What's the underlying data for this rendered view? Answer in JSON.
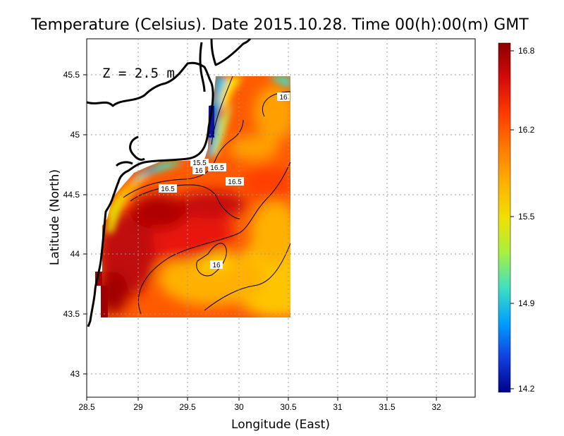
{
  "title": "Temperature (Celsius). Date 2015.10.28. Time 00(h):00(m) GMT",
  "depth_label": "Z = 2.5 m",
  "xlabel": "Longitude (East)",
  "ylabel": "Latitude (North)",
  "x_ticks": [
    "28.5",
    "29",
    "29.5",
    "30",
    "30.5",
    "31",
    "31.5",
    "32"
  ],
  "y_ticks": [
    "43",
    "43.5",
    "44",
    "44.5",
    "45",
    "45.5"
  ],
  "colorbar": {
    "min": 14.2,
    "max": 16.8,
    "ticks": [
      "16.8",
      "16.2",
      "15.5",
      "14.9",
      "14.2"
    ],
    "colors": [
      "#8b0000",
      "#d40a0a",
      "#ff3a00",
      "#ff7a00",
      "#ffb000",
      "#f0e000",
      "#a8f040",
      "#40e0c0",
      "#00a0ff",
      "#1040e0",
      "#00008b"
    ]
  },
  "contour_labels": [
    "16",
    "15.5",
    "16",
    "16.5",
    "16.5",
    "16.5",
    "16"
  ],
  "chart_data": {
    "type": "heatmap",
    "title": "Temperature (Celsius). Date 2015.10.28. Time 00(h):00(m) GMT",
    "xlabel": "Longitude (East)",
    "ylabel": "Latitude (North)",
    "xlim": [
      28.5,
      32.4
    ],
    "ylim": [
      42.8,
      45.8
    ],
    "data_extent": {
      "lon": [
        28.65,
        30.55
      ],
      "lat": [
        43.5,
        45.5
      ]
    },
    "colorscale_range": [
      14.2,
      16.8
    ],
    "grid": true,
    "contours": [
      {
        "level": 16.0,
        "label_at": [
          30.42,
          45.32
        ]
      },
      {
        "level": 15.5,
        "label_at": [
          29.59,
          44.77
        ]
      },
      {
        "level": 16.0,
        "label_at": [
          29.6,
          44.72
        ]
      },
      {
        "level": 16.5,
        "label_at": [
          29.72,
          44.74
        ]
      },
      {
        "level": 16.5,
        "label_at": [
          29.93,
          44.61
        ]
      },
      {
        "level": 16.5,
        "label_at": [
          29.3,
          44.56
        ]
      },
      {
        "level": 16.0,
        "label_at": [
          29.83,
          43.93
        ]
      }
    ],
    "field_samples": [
      {
        "lon": 28.7,
        "lat": 43.7,
        "value": 16.8
      },
      {
        "lon": 29.0,
        "lat": 44.3,
        "value": 16.7
      },
      {
        "lon": 29.8,
        "lat": 44.4,
        "value": 16.75
      },
      {
        "lon": 30.2,
        "lat": 44.2,
        "value": 16.5
      },
      {
        "lon": 29.8,
        "lat": 43.9,
        "value": 16.0
      },
      {
        "lon": 30.4,
        "lat": 43.7,
        "value": 16.0
      },
      {
        "lon": 30.4,
        "lat": 45.0,
        "value": 16.3
      },
      {
        "lon": 29.72,
        "lat": 45.1,
        "value": 14.3
      },
      {
        "lon": 29.0,
        "lat": 44.6,
        "value": 15.0
      },
      {
        "lon": 28.72,
        "lat": 44.3,
        "value": 15.6
      }
    ]
  }
}
